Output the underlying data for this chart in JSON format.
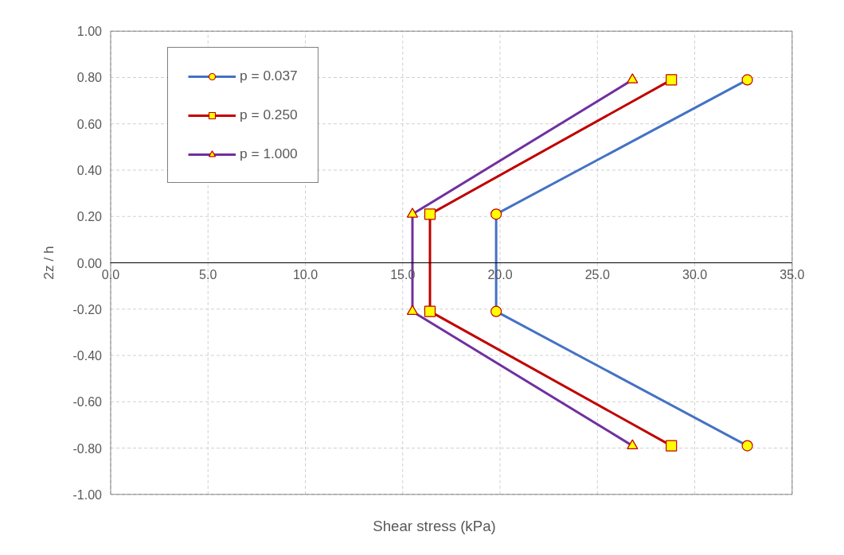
{
  "chart_data": {
    "type": "line",
    "xlabel": "Shear stress (kPa)",
    "ylabel": "2z / h",
    "xlim": [
      0,
      35
    ],
    "ylim": [
      -1,
      1
    ],
    "xticks": [
      {
        "value": 0,
        "label": "0.0"
      },
      {
        "value": 5,
        "label": "5.0"
      },
      {
        "value": 10,
        "label": "10.0"
      },
      {
        "value": 15,
        "label": "15.0"
      },
      {
        "value": 20,
        "label": "20.0"
      },
      {
        "value": 25,
        "label": "25.0"
      },
      {
        "value": 30,
        "label": "30.0"
      },
      {
        "value": 35,
        "label": "35.0"
      }
    ],
    "yticks": [
      {
        "value": -1,
        "label": "-1.00"
      },
      {
        "value": -0.8,
        "label": "-0.80"
      },
      {
        "value": -0.6,
        "label": "-0.60"
      },
      {
        "value": -0.4,
        "label": "-0.40"
      },
      {
        "value": -0.2,
        "label": "-0.20"
      },
      {
        "value": 0,
        "label": "0.00"
      },
      {
        "value": 0.2,
        "label": "0.20"
      },
      {
        "value": 0.4,
        "label": "0.40"
      },
      {
        "value": 0.6,
        "label": "0.60"
      },
      {
        "value": 0.8,
        "label": "0.80"
      },
      {
        "value": 1,
        "label": "1.00"
      }
    ],
    "grid": true,
    "legend": "top left",
    "line_style": "solid",
    "series": [
      {
        "name": "p = 0.037",
        "color": "#4472c4",
        "marker": "circle",
        "x": [
          32.7,
          19.8,
          19.8,
          32.7
        ],
        "values": [
          0.79,
          0.21,
          -0.21,
          -0.79
        ]
      },
      {
        "name": "p = 0.250",
        "color": "#c00000",
        "marker": "square",
        "x": [
          28.8,
          16.4,
          16.4,
          28.8
        ],
        "values": [
          0.79,
          0.21,
          -0.21,
          -0.79
        ]
      },
      {
        "name": "p = 1.000",
        "color": "#7030a0",
        "marker": "triangle",
        "x": [
          26.8,
          15.5,
          15.5,
          26.8
        ],
        "values": [
          0.79,
          0.21,
          -0.21,
          -0.79
        ]
      }
    ]
  }
}
